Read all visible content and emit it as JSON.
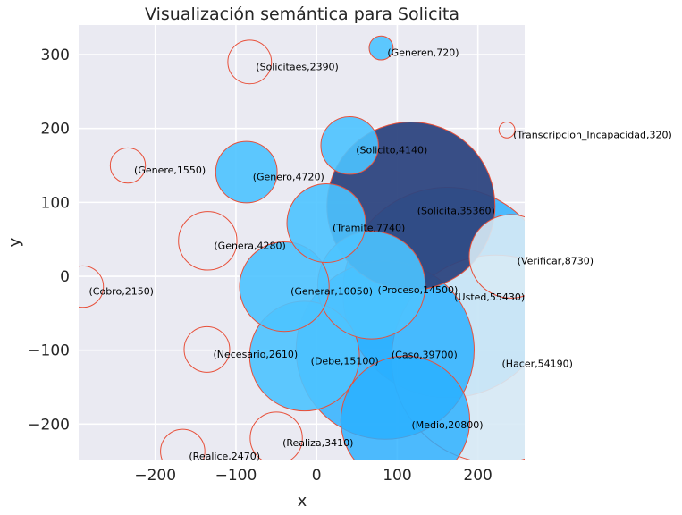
{
  "chart_data": {
    "type": "scatter",
    "title": "Visualización semántica para Solicita",
    "xlabel": "x",
    "ylabel": "y",
    "xlim": [
      -295,
      258
    ],
    "ylim": [
      -248,
      340
    ],
    "xticks": [
      -200,
      -100,
      0,
      100,
      200
    ],
    "yticks": [
      -200,
      -100,
      0,
      100,
      200,
      300
    ],
    "xtick_labels": [
      "−200",
      "−100",
      "0",
      "100",
      "200"
    ],
    "ytick_labels": [
      "−200",
      "−100",
      "0",
      "100",
      "200",
      "300"
    ],
    "grid": true,
    "size_encoding": "bubble area proportional to value",
    "colors": {
      "background": "#eaeaf2",
      "grid": "#ffffff",
      "edge": "#e8503a",
      "filled": "#4dc3ff",
      "target": "#2e467f",
      "large_filled": "#2ab0ff",
      "pale": "#d7eaf5"
    },
    "points": [
      {
        "label": "(Solicitaes,2390)",
        "word": "Solicitaes",
        "value": 2390,
        "x": -83,
        "y": 290,
        "style": "hollow"
      },
      {
        "label": "(Generen,720)",
        "word": "Generen",
        "value": 720,
        "x": 80,
        "y": 309,
        "style": "filled"
      },
      {
        "label": "(Transcripcion_Incapacidad,320)",
        "word": "Transcripcion_Incapacidad",
        "value": 320,
        "x": 236,
        "y": 198,
        "style": "hollow"
      },
      {
        "label": "(Genere,1550)",
        "word": "Genere",
        "value": 1550,
        "x": -234,
        "y": 150,
        "style": "hollow"
      },
      {
        "label": "(Solicito,4140)",
        "word": "Solicito",
        "value": 4140,
        "x": 41,
        "y": 177,
        "style": "filled"
      },
      {
        "label": "(Genero,4720)",
        "word": "Genero",
        "value": 4720,
        "x": -87,
        "y": 141,
        "style": "filled"
      },
      {
        "label": "(Solicita,35360)",
        "word": "Solicita",
        "value": 35360,
        "x": 117,
        "y": 95,
        "style": "target"
      },
      {
        "label": "(Tramite,7740)",
        "word": "Tramite",
        "value": 7740,
        "x": 12,
        "y": 72,
        "style": "filled"
      },
      {
        "label": "(Genera,4280)",
        "word": "Genera",
        "value": 4280,
        "x": -135,
        "y": 48,
        "style": "hollow"
      },
      {
        "label": "(Verificar,8730)",
        "word": "Verificar",
        "value": 8730,
        "x": 241,
        "y": 27,
        "style": "pale"
      },
      {
        "label": "(Cobro,2150)",
        "word": "Cobro",
        "value": 2150,
        "x": -290,
        "y": -14,
        "style": "hollow"
      },
      {
        "label": "(Generar,10050)",
        "word": "Generar",
        "value": 10050,
        "x": -40,
        "y": -14,
        "style": "filled"
      },
      {
        "label": "(Proceso,14500)",
        "word": "Proceso",
        "value": 14500,
        "x": 68,
        "y": -12,
        "style": "filled"
      },
      {
        "label": "(Usted,55430)",
        "word": "Usted",
        "value": 55430,
        "x": 163,
        "y": -22,
        "style": "large"
      },
      {
        "label": "(Necesario,2610)",
        "word": "Necesario,",
        "value": 2610,
        "x": -136,
        "y": -99,
        "style": "hollow"
      },
      {
        "label": "(Caso,39700)",
        "word": "Caso",
        "value": 39700,
        "x": 85,
        "y": -100,
        "style": "large"
      },
      {
        "label": "(Debe,15100)",
        "word": "Debe",
        "value": 15100,
        "x": -15,
        "y": -108,
        "style": "filled"
      },
      {
        "label": "(Hacer,54190)",
        "word": "Hacer",
        "value": 54190,
        "x": 222,
        "y": -112,
        "style": "pale"
      },
      {
        "label": "(Medio,20800)",
        "word": "Medio",
        "value": 20800,
        "x": 110,
        "y": -195,
        "style": "large"
      },
      {
        "label": "(Realiza,3410)",
        "word": "Realiza",
        "value": 3410,
        "x": -50,
        "y": -219,
        "style": "hollow"
      },
      {
        "label": "(Realice,2470)",
        "word": "Realice",
        "value": 2470,
        "x": -166,
        "y": -237,
        "style": "hollow"
      }
    ]
  }
}
